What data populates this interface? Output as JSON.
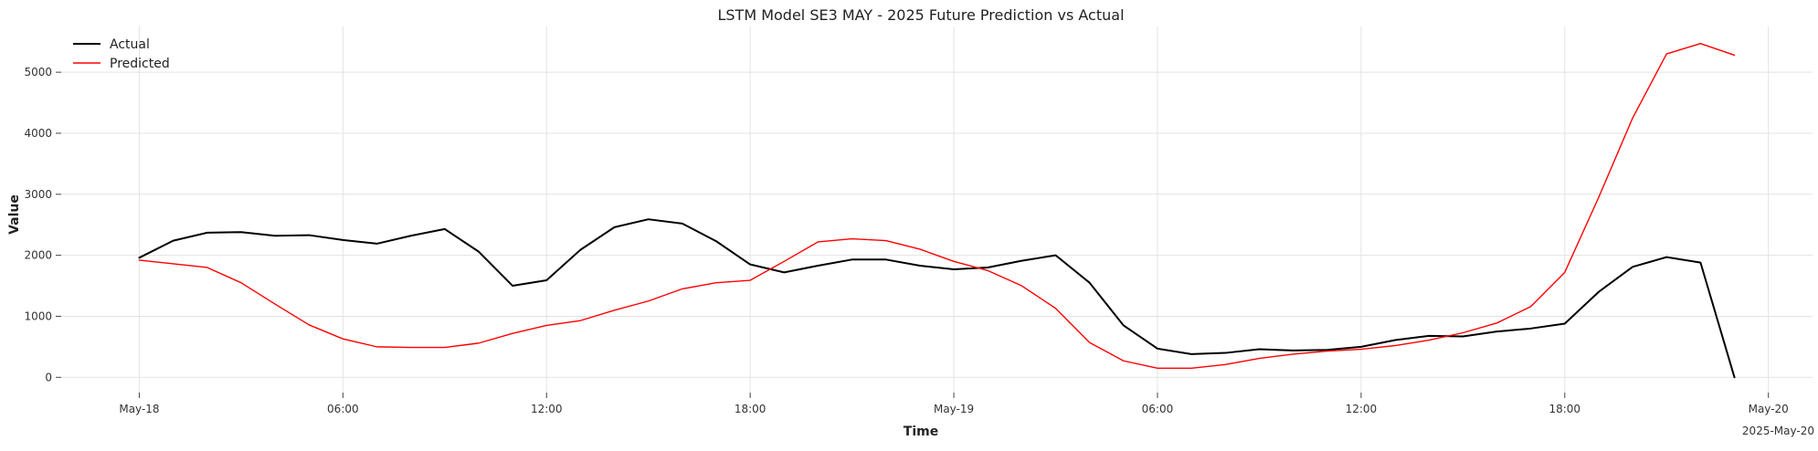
{
  "chart_data": {
    "type": "line",
    "title": "LSTM Model SE3 MAY - 2025 Future Prediction vs Actual",
    "xlabel": "Time",
    "ylabel": "Value",
    "x_unit": "hours",
    "x_ticks": [
      {
        "hour": 0,
        "label": "May-18"
      },
      {
        "hour": 6,
        "label": "06:00"
      },
      {
        "hour": 12,
        "label": "12:00"
      },
      {
        "hour": 18,
        "label": "18:00"
      },
      {
        "hour": 24,
        "label": "May-19"
      },
      {
        "hour": 30,
        "label": "06:00"
      },
      {
        "hour": 36,
        "label": "12:00"
      },
      {
        "hour": 42,
        "label": "18:00"
      },
      {
        "hour": 48,
        "label": "May-20"
      }
    ],
    "x_offset_label": "2025-May-20",
    "xlim": [
      -2.3,
      49.3
    ],
    "ylim": [
      -250,
      5750
    ],
    "y_ticks": [
      0,
      1000,
      2000,
      3000,
      4000,
      5000
    ],
    "grid": true,
    "legend_position": "top-left",
    "series": [
      {
        "name": "Actual",
        "color": "#000000",
        "values": [
          1960,
          2240,
          2370,
          2380,
          2320,
          2330,
          2250,
          2190,
          2320,
          2430,
          2060,
          1500,
          1590,
          2090,
          2460,
          2590,
          2520,
          2230,
          1850,
          1720,
          1830,
          1930,
          1930,
          1830,
          1770,
          1800,
          1910,
          2000,
          1550,
          850,
          470,
          380,
          400,
          460,
          440,
          450,
          500,
          610,
          680,
          670,
          750,
          800,
          880,
          1400,
          1810,
          1970,
          1880,
          0
        ]
      },
      {
        "name": "Predicted",
        "color": "#ff0000",
        "values": [
          1920,
          1860,
          1800,
          1550,
          1200,
          860,
          630,
          500,
          490,
          490,
          560,
          720,
          850,
          930,
          1100,
          1250,
          1450,
          1550,
          1590,
          1900,
          2220,
          2270,
          2240,
          2100,
          1900,
          1750,
          1500,
          1130,
          570,
          270,
          150,
          150,
          210,
          310,
          380,
          430,
          460,
          520,
          610,
          730,
          890,
          1160,
          1720,
          2950,
          4250,
          5300,
          5470,
          5280
        ]
      }
    ]
  }
}
